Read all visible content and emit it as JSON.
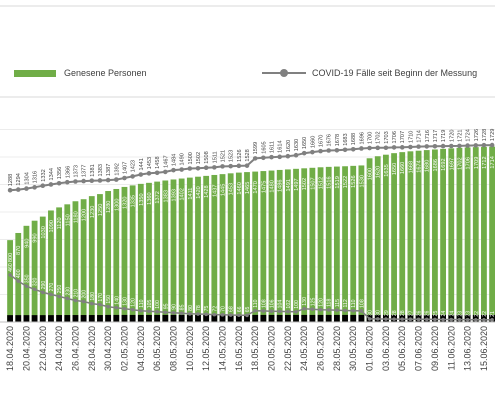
{
  "legend": {
    "recovered_label": "Genesene Personen",
    "total_label": "COVID-19 Fälle seit Beginn der Messung"
  },
  "colors": {
    "recovered": "#70ad47",
    "total": "#808080",
    "active": "#808080",
    "deaths": "#000000",
    "grid": "#d9d9d9"
  },
  "chart_data": {
    "type": "bar",
    "x": [
      "18.04.2020",
      "19.04.2020",
      "20.04.2020",
      "21.04.2020",
      "22.04.2020",
      "23.04.2020",
      "24.04.2020",
      "25.04.2020",
      "26.04.2020",
      "27.04.2020",
      "28.04.2020",
      "29.04.2020",
      "30.04.2020",
      "01.05.2020",
      "02.05.2020",
      "03.05.2020",
      "04.05.2020",
      "05.05.2020",
      "06.05.2020",
      "07.05.2020",
      "08.05.2020",
      "09.05.2020",
      "10.05.2020",
      "11.05.2020",
      "12.05.2020",
      "13.05.2020",
      "14.05.2020",
      "15.05.2020",
      "16.05.2020",
      "17.05.2020",
      "18.05.2020",
      "19.05.2020",
      "20.05.2020",
      "21.05.2020",
      "22.05.2020",
      "23.05.2020",
      "24.05.2020",
      "25.05.2020",
      "26.05.2020",
      "27.05.2020",
      "28.05.2020",
      "29.05.2020",
      "30.05.2020",
      "31.05.2020",
      "01.06.2020",
      "02.06.2020",
      "03.06.2020",
      "04.06.2020",
      "05.06.2020",
      "06.06.2020",
      "07.06.2020",
      "08.06.2020",
      "09.06.2020",
      "10.06.2020",
      "11.06.2020",
      "12.06.2020",
      "13.06.2020",
      "14.06.2020",
      "15.06.2020",
      "16.06.2020"
    ],
    "xticks": [
      "18.04.2020",
      "20.04.2020",
      "22.04.2020",
      "24.04.2020",
      "26.04.2020",
      "28.04.2020",
      "30.04.2020",
      "02.05.2020",
      "04.05.2020",
      "06.05.2020",
      "08.05.2020",
      "10.05.2020",
      "12.05.2020",
      "14.05.2020",
      "16.05.2020",
      "18.05.2020",
      "20.05.2020",
      "22.05.2020",
      "24.05.2020",
      "26.05.2020",
      "28.05.2020",
      "30.05.2020",
      "01.06.2020",
      "03.06.2020",
      "05.06.2020",
      "07.06.2020",
      "09.06.2020",
      "11.06.2020",
      "13.06.2020",
      "15.06.2020"
    ],
    "series": [
      {
        "name": "Genesene Personen",
        "type": "bar",
        "values": [
          800,
          870,
          940,
          990,
          1030,
          1090,
          1120,
          1150,
          1180,
          1200,
          1230,
          1250,
          1280,
          1300,
          1320,
          1335,
          1350,
          1360,
          1372,
          1383,
          1393,
          1402,
          1411,
          1420,
          1428,
          1437,
          1445,
          1453,
          1460,
          1465,
          1470,
          1475,
          1480,
          1486,
          1491,
          1497,
          1502,
          1507,
          1512,
          1516,
          1519,
          1522,
          1526,
          1530,
          1600,
          1620,
          1635,
          1650,
          1660,
          1668,
          1674,
          1680,
          1686,
          1692,
          1697,
          1702,
          1706,
          1709,
          1712,
          1714
        ]
      },
      {
        "name": "COVID-19 Fälle seit Beginn der Messung",
        "type": "line",
        "values": [
          1288,
          1294,
          1304,
          1316,
          1332,
          1344,
          1356,
          1366,
          1373,
          1377,
          1381,
          1383,
          1387,
          1392,
          1407,
          1423,
          1441,
          1453,
          1458,
          1467,
          1484,
          1490,
          1500,
          1502,
          1508,
          1511,
          1521,
          1523,
          1526,
          1528,
          1599,
          1605,
          1611,
          1614,
          1620,
          1630,
          1650,
          1660,
          1670,
          1676,
          1678,
          1683,
          1688,
          1696,
          1700,
          1702,
          1703,
          1706,
          1707,
          1710,
          1714,
          1716,
          1717,
          1719,
          1720,
          1721,
          1724,
          1726,
          1728,
          1729
        ]
      },
      {
        "values": [
          460,
          400,
          350,
          320,
          290,
          270,
          250,
          230,
          210,
          200,
          180,
          170,
          150,
          140,
          130,
          120,
          110,
          105,
          100,
          95,
          90,
          85,
          80,
          78,
          75,
          72,
          70,
          68,
          66,
          65,
          110,
          108,
          106,
          104,
          102,
          100,
          130,
          125,
          120,
          118,
          115,
          112,
          110,
          108,
          30,
          30,
          29,
          28,
          28,
          27,
          26,
          26,
          25,
          24,
          24,
          23,
          23,
          22,
          22,
          21
        ]
      },
      {
        "values": [
          28,
          28,
          28,
          28,
          28,
          28,
          29,
          29,
          29,
          29,
          29,
          29,
          30,
          30,
          30,
          30,
          30,
          30,
          30,
          30,
          30,
          30,
          30,
          30,
          30,
          30,
          30,
          30,
          30,
          30,
          30,
          30,
          30,
          30,
          30,
          30,
          30,
          30,
          30,
          30,
          30,
          30,
          30,
          30,
          30,
          30,
          30,
          30,
          30,
          30,
          30,
          30,
          30,
          30,
          30,
          30,
          30,
          30,
          30,
          30
        ]
      }
    ],
    "ylim": [
      0,
      2150
    ],
    "grid": true,
    "legend_position": "top"
  }
}
